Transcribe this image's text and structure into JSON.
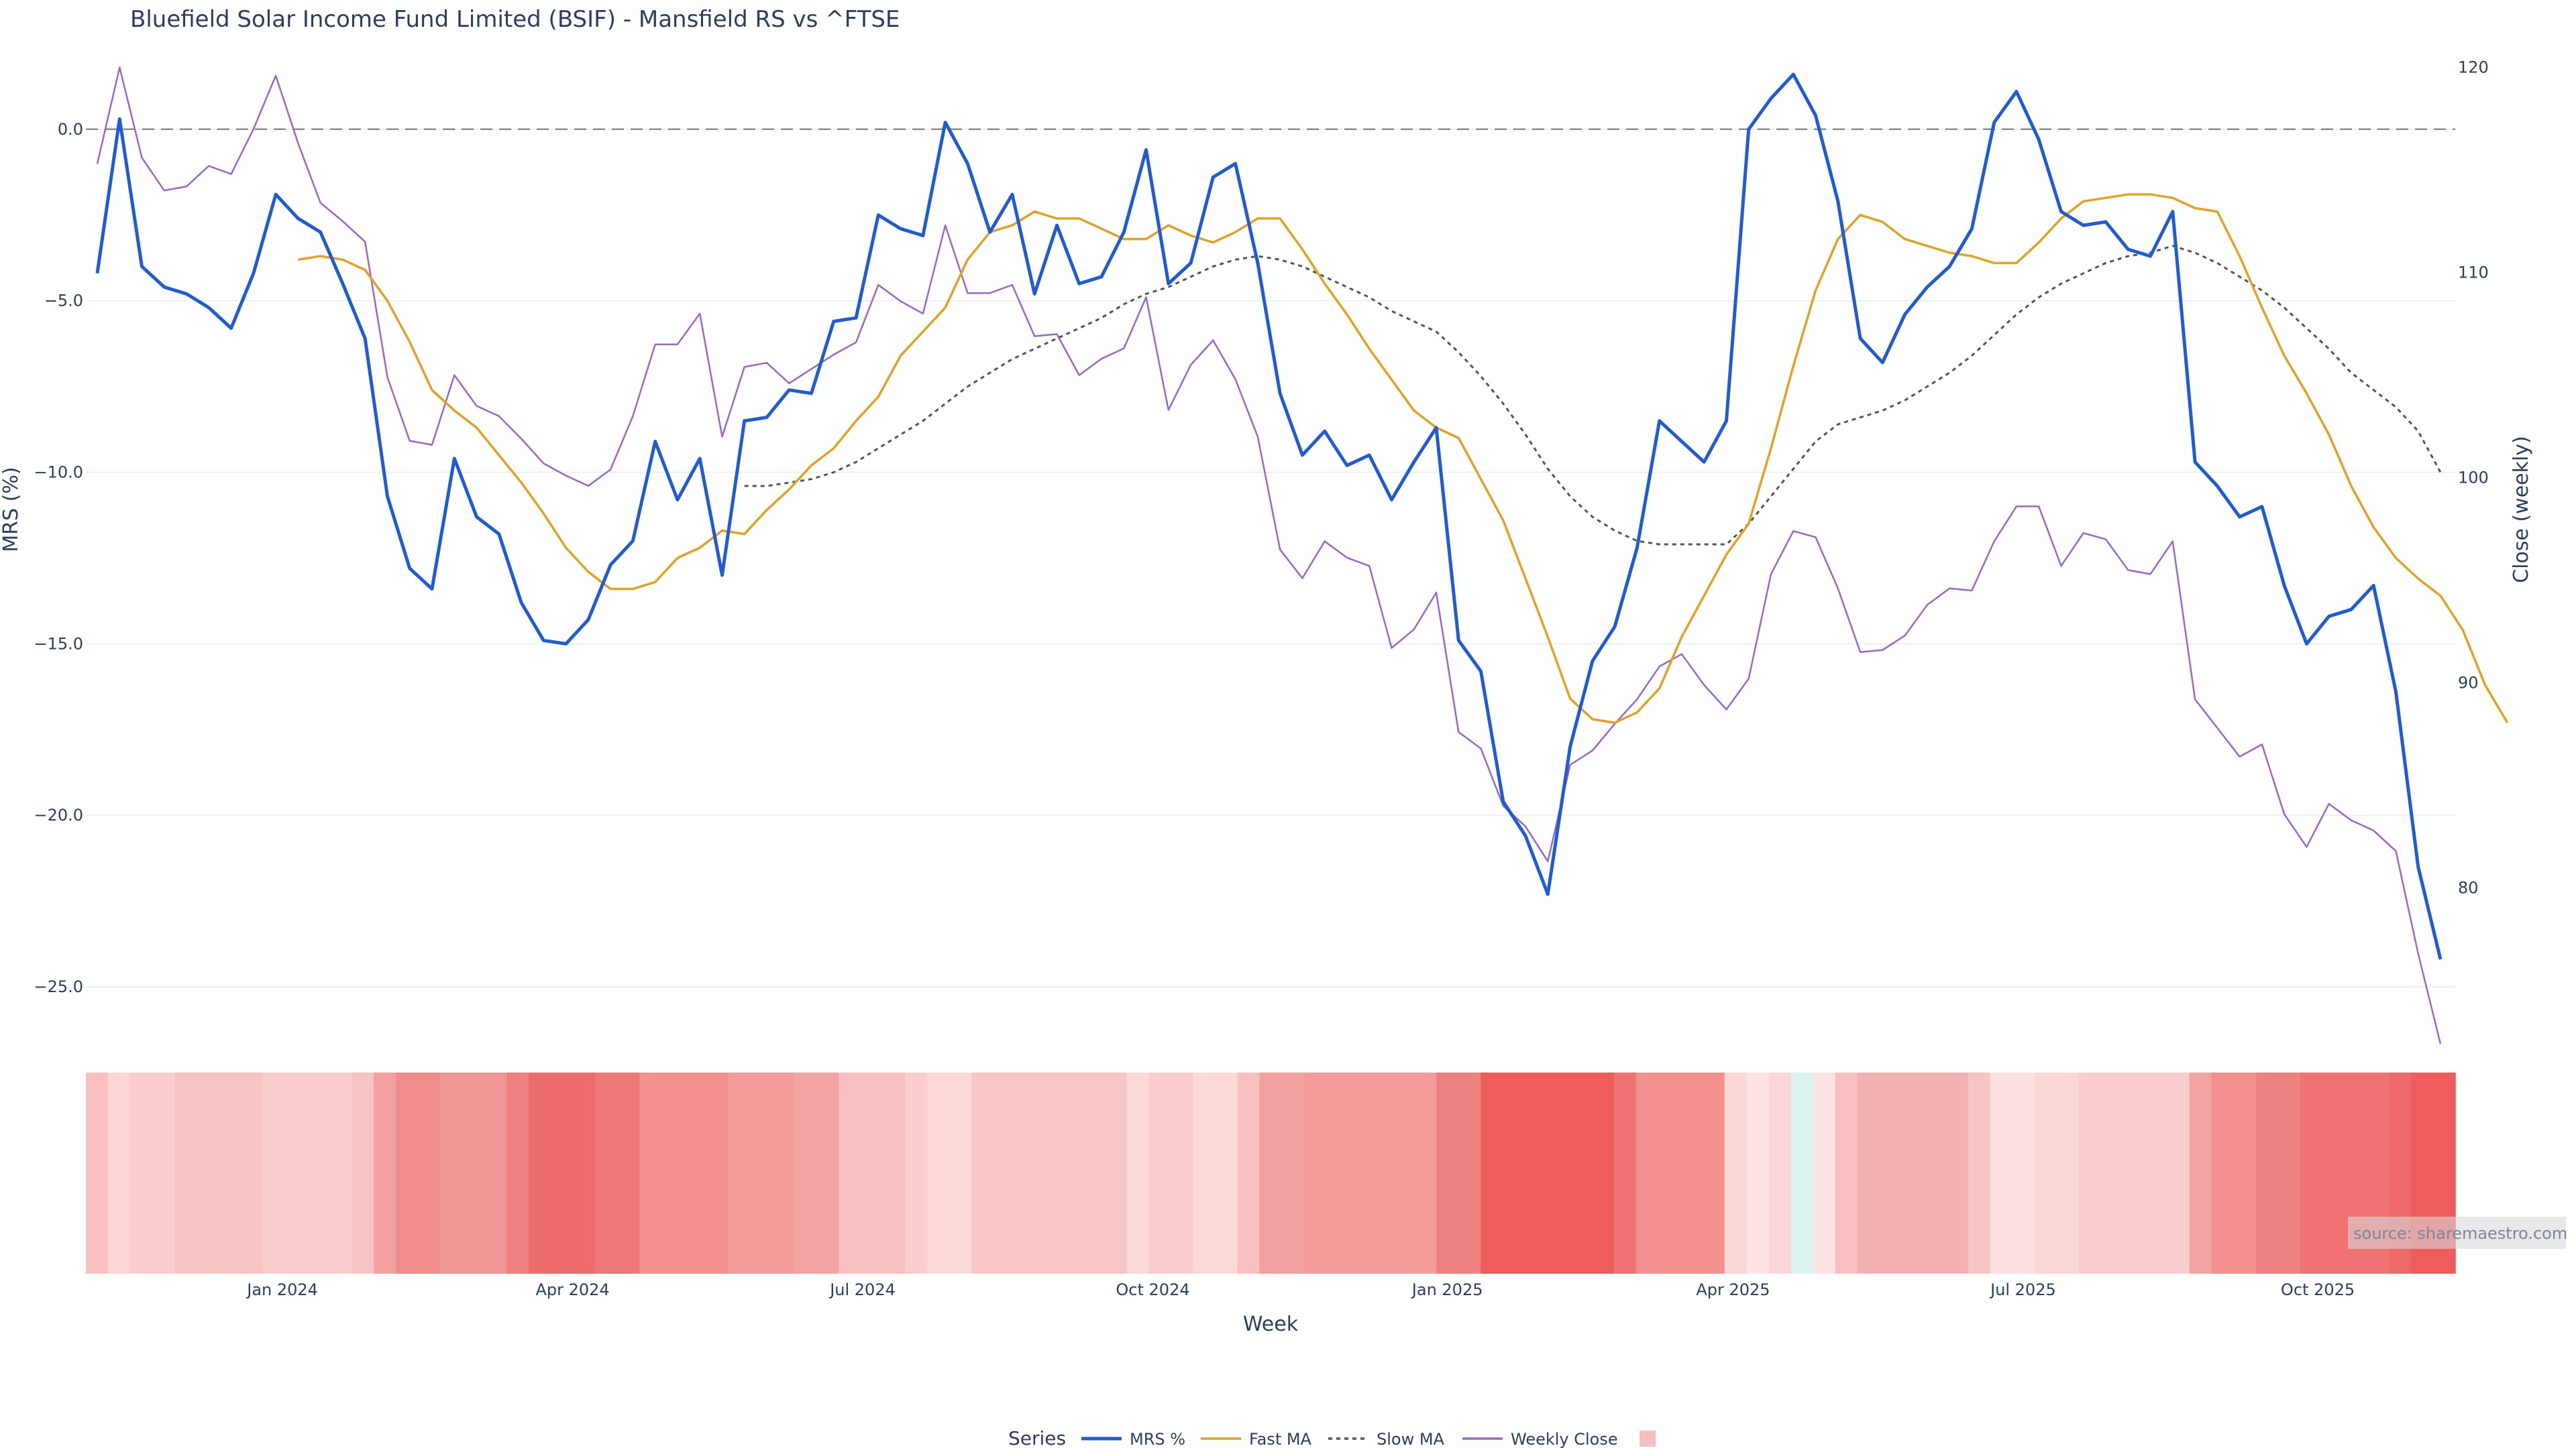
{
  "chart_data": {
    "type": "line",
    "title": "Bluefield Solar Income Fund Limited (BSIF) - Mansfield RS vs ^FTSE",
    "xlabel": "Week",
    "ylabel_left": "MRS (%)",
    "ylabel_right": "Close (weekly)",
    "y_left_ticks": [
      "0.0",
      "−5.0",
      "−10.0",
      "−15.0",
      "−20.0",
      "−25.0"
    ],
    "y_left_tick_values": [
      0,
      -5,
      -10,
      -15,
      -20,
      -25
    ],
    "y_left_range": [
      -27.5,
      2.4
    ],
    "y_right_ticks": [
      "120",
      "110",
      "100",
      "90",
      "80"
    ],
    "y_right_tick_values": [
      120,
      110,
      100,
      90,
      80
    ],
    "y_right_range": [
      71,
      121
    ],
    "x_ticks": [
      "Jan 2024",
      "Apr 2024",
      "Jul 2024",
      "Oct 2024",
      "Jan 2025",
      "Apr 2025",
      "Jul 2025",
      "Oct 2025"
    ],
    "x_tick_week_index": [
      8.3,
      21.3,
      34.3,
      47.3,
      60.5,
      73.3,
      86.3,
      99.5
    ],
    "n_weeks": 106,
    "reference_line": {
      "y": 0,
      "style": "dashed"
    },
    "legend_title": "Series",
    "series": [
      {
        "name": "MRS %",
        "color": "#1f5bd6",
        "axis": "left",
        "values": [
          -4.2,
          0.3,
          -4.0,
          -4.6,
          -4.8,
          -5.2,
          -5.8,
          -4.2,
          -1.9,
          -2.6,
          -3.0,
          -4.5,
          -6.1,
          -10.7,
          -12.8,
          -13.4,
          -9.6,
          -11.3,
          -11.8,
          -13.8,
          -14.9,
          -15.0,
          -14.3,
          -12.7,
          -12.0,
          -9.1,
          -10.8,
          -9.6,
          -13.0,
          -8.5,
          -8.4,
          -7.6,
          -7.7,
          -5.6,
          -5.5,
          -2.5,
          -2.9,
          -3.1,
          0.2,
          -1.0,
          -3.0,
          -1.9,
          -4.8,
          -2.8,
          -4.5,
          -4.3,
          -3.0,
          -0.6,
          -4.5,
          -3.9,
          -1.4,
          -1.0,
          -3.9,
          -7.7,
          -9.5,
          -8.8,
          -9.8,
          -9.5,
          -10.8,
          -9.7,
          -8.7,
          -14.9,
          -15.8,
          -19.6,
          -20.6,
          -22.3,
          -18.0,
          -15.5,
          -14.5,
          -12.2,
          -8.5,
          -9.1,
          -9.7,
          -8.5,
          0.0,
          0.9,
          1.6,
          0.4,
          -2.1,
          -6.1,
          -6.8,
          -5.4,
          -4.6,
          -4.0,
          -2.9,
          0.2,
          1.1,
          -0.3,
          -2.4,
          -2.8,
          -2.7,
          -3.5,
          -3.7,
          -2.4,
          -9.7,
          -10.4,
          -11.3,
          -11.0,
          -13.3,
          -15.0,
          -14.2,
          -14.0,
          -13.3,
          -16.4,
          -21.5,
          -24.2
        ]
      },
      {
        "name": "Fast MA",
        "color": "#e5a11f",
        "axis": "left",
        "values": [
          null,
          null,
          null,
          null,
          null,
          null,
          null,
          null,
          null,
          -3.8,
          -3.7,
          -3.8,
          -4.1,
          -5.0,
          -6.2,
          -7.6,
          -8.2,
          -8.7,
          -9.5,
          -10.3,
          -11.2,
          -12.2,
          -12.9,
          -13.4,
          -13.4,
          -13.2,
          -12.5,
          -12.2,
          -11.7,
          -11.8,
          -11.1,
          -10.5,
          -9.8,
          -9.3,
          -8.5,
          -7.8,
          -6.6,
          -5.9,
          -5.2,
          -3.8,
          -3.0,
          -2.8,
          -2.4,
          -2.6,
          -2.6,
          -2.9,
          -3.2,
          -3.2,
          -2.8,
          -3.1,
          -3.3,
          -3.0,
          -2.6,
          -2.6,
          -3.5,
          -4.5,
          -5.4,
          -6.4,
          -7.3,
          -8.2,
          -8.7,
          -9.0,
          -10.2,
          -11.4,
          -13.1,
          -14.8,
          -16.6,
          -17.2,
          -17.3,
          -17.0,
          -16.3,
          -14.8,
          -13.6,
          -12.4,
          -11.5,
          -9.3,
          -6.9,
          -4.7,
          -3.2,
          -2.5,
          -2.7,
          -3.2,
          -3.4,
          -3.6,
          -3.7,
          -3.9,
          -3.9,
          -3.3,
          -2.6,
          -2.1,
          -2.0,
          -1.9,
          -1.9,
          -2.0,
          -2.3,
          -2.4,
          -3.7,
          -5.2,
          -6.6,
          -7.7,
          -8.9,
          -10.4,
          -11.6,
          -12.5,
          -13.1,
          -13.6,
          -14.6,
          -16.2,
          -17.3
        ]
      },
      {
        "name": "Slow MA",
        "color": "#555555",
        "axis": "left",
        "dash": true,
        "values": [
          null,
          null,
          null,
          null,
          null,
          null,
          null,
          null,
          null,
          null,
          null,
          null,
          null,
          null,
          null,
          null,
          null,
          null,
          null,
          null,
          null,
          null,
          null,
          null,
          null,
          null,
          null,
          null,
          null,
          -10.4,
          -10.4,
          -10.3,
          -10.2,
          -10.0,
          -9.7,
          -9.3,
          -8.9,
          -8.5,
          -8.0,
          -7.5,
          -7.1,
          -6.7,
          -6.4,
          -6.1,
          -5.8,
          -5.5,
          -5.1,
          -4.8,
          -4.6,
          -4.3,
          -4.0,
          -3.8,
          -3.7,
          -3.8,
          -4.0,
          -4.3,
          -4.6,
          -4.9,
          -5.3,
          -5.6,
          -5.9,
          -6.5,
          -7.2,
          -8.0,
          -8.9,
          -9.9,
          -10.7,
          -11.3,
          -11.7,
          -12.0,
          -12.1,
          -12.1,
          -12.1,
          -12.1,
          -11.5,
          -10.7,
          -9.9,
          -9.1,
          -8.6,
          -8.4,
          -8.2,
          -7.9,
          -7.5,
          -7.1,
          -6.6,
          -6.0,
          -5.4,
          -4.9,
          -4.5,
          -4.2,
          -3.9,
          -3.7,
          -3.6,
          -3.4,
          -3.6,
          -3.9,
          -4.3,
          -4.7,
          -5.2,
          -5.8,
          -6.4,
          -7.1,
          -7.6,
          -8.1,
          -8.8,
          -10.0
        ]
      },
      {
        "name": "Weekly Close",
        "color": "#9966cc",
        "axis": "right",
        "values": [
          115.3,
          120.0,
          115.6,
          114.0,
          114.2,
          115.2,
          114.8,
          117.0,
          119.6,
          116.3,
          113.4,
          112.5,
          111.5,
          104.9,
          101.8,
          101.6,
          105.0,
          103.5,
          103.0,
          101.9,
          100.7,
          100.1,
          99.6,
          100.4,
          103.0,
          106.5,
          106.5,
          108.0,
          102.0,
          105.4,
          105.6,
          104.6,
          105.3,
          106.0,
          106.6,
          109.4,
          108.6,
          108.0,
          112.3,
          109.0,
          109.0,
          109.4,
          106.9,
          107.0,
          105.0,
          105.8,
          106.3,
          108.8,
          103.3,
          105.5,
          106.7,
          104.8,
          102.0,
          96.5,
          95.1,
          96.9,
          96.1,
          95.7,
          91.7,
          92.6,
          94.4,
          87.6,
          86.8,
          84.0,
          83.0,
          81.3,
          86.0,
          86.7,
          88.0,
          89.2,
          90.8,
          91.4,
          89.9,
          88.7,
          90.2,
          95.3,
          97.4,
          97.1,
          94.6,
          91.5,
          91.6,
          92.3,
          93.8,
          94.6,
          94.5,
          96.9,
          98.6,
          98.6,
          95.7,
          97.3,
          97.0,
          95.5,
          95.3,
          96.9,
          89.2,
          87.8,
          86.4,
          87.0,
          83.6,
          82.0,
          84.1,
          83.3,
          82.8,
          81.8,
          76.8,
          72.4
        ]
      }
    ],
    "heatmap_strip": {
      "description": "MRS heat strip per week",
      "cell_colors": [
        "#f7bfc0",
        "#fbd6d6",
        "#f9cdcd",
        "#f9cdcd",
        "#f7c4c4",
        "#f7c4c4",
        "#f7c4c4",
        "#f7c4c4",
        "#f9cdcd",
        "#f9cdcd",
        "#f9cdcd",
        "#f9cdcd",
        "#f7c4c4",
        "#f2a0a0",
        "#ef8c8c",
        "#ef8c8c",
        "#f09595",
        "#f09595",
        "#f09595",
        "#ee8080",
        "#ec6b6b",
        "#ec6b6b",
        "#ec6b6b",
        "#ee7777",
        "#ee7777",
        "#f28f8f",
        "#f28f8f",
        "#f28f8f",
        "#f28f8f",
        "#f39a9a",
        "#f39a9a",
        "#f39a9a",
        "#f4a3a3",
        "#f4a3a3",
        "#f7bfc0",
        "#f7bfc0",
        "#f7bfc0",
        "#f9cdcd",
        "#fbd9d9",
        "#fbd9d9",
        "#f7c6c6",
        "#f7c6c6",
        "#f7c6c6",
        "#f7c6c6",
        "#f7c6c6",
        "#f7c6c6",
        "#f7c6c6",
        "#fbd9d9",
        "#f9cdcd",
        "#f9cdcd",
        "#fbd9d9",
        "#fbd9d9",
        "#f7bfc0",
        "#f2a0a0",
        "#f2a0a0",
        "#f39a9a",
        "#f39a9a",
        "#f39a9a",
        "#f39a9a",
        "#f39a9a",
        "#f39a9a",
        "#ee8080",
        "#ee8080",
        "#ee5c5c",
        "#ee5c5c",
        "#ee5c5c",
        "#ee5c5c",
        "#ee5c5c",
        "#ee5c5c",
        "#f07272",
        "#f29090",
        "#f29090",
        "#f29090",
        "#f29090",
        "#fbd6d6",
        "#fde3e3",
        "#fbd6d6",
        "#dcf3ee",
        "#fde3e3",
        "#f7bfc0",
        "#f4b1b1",
        "#f4b1b1",
        "#f4b1b1",
        "#f4b1b1",
        "#f4b1b1",
        "#f7c4c4",
        "#fde0e0",
        "#fde0e0",
        "#fbd6d6",
        "#fbd6d6",
        "#f9cdcd",
        "#f9cdcd",
        "#f9cdcd",
        "#f9cdcd",
        "#f9cdcd",
        "#f4a3a3",
        "#f28f8f",
        "#f28f8f",
        "#ee8080",
        "#ee8080",
        "#f07272",
        "#f07272",
        "#f07272",
        "#f07272",
        "#ee6a6a",
        "#ee5c5c",
        "#ee5c5c"
      ]
    },
    "source_note": "source: sharemaestro.com"
  }
}
